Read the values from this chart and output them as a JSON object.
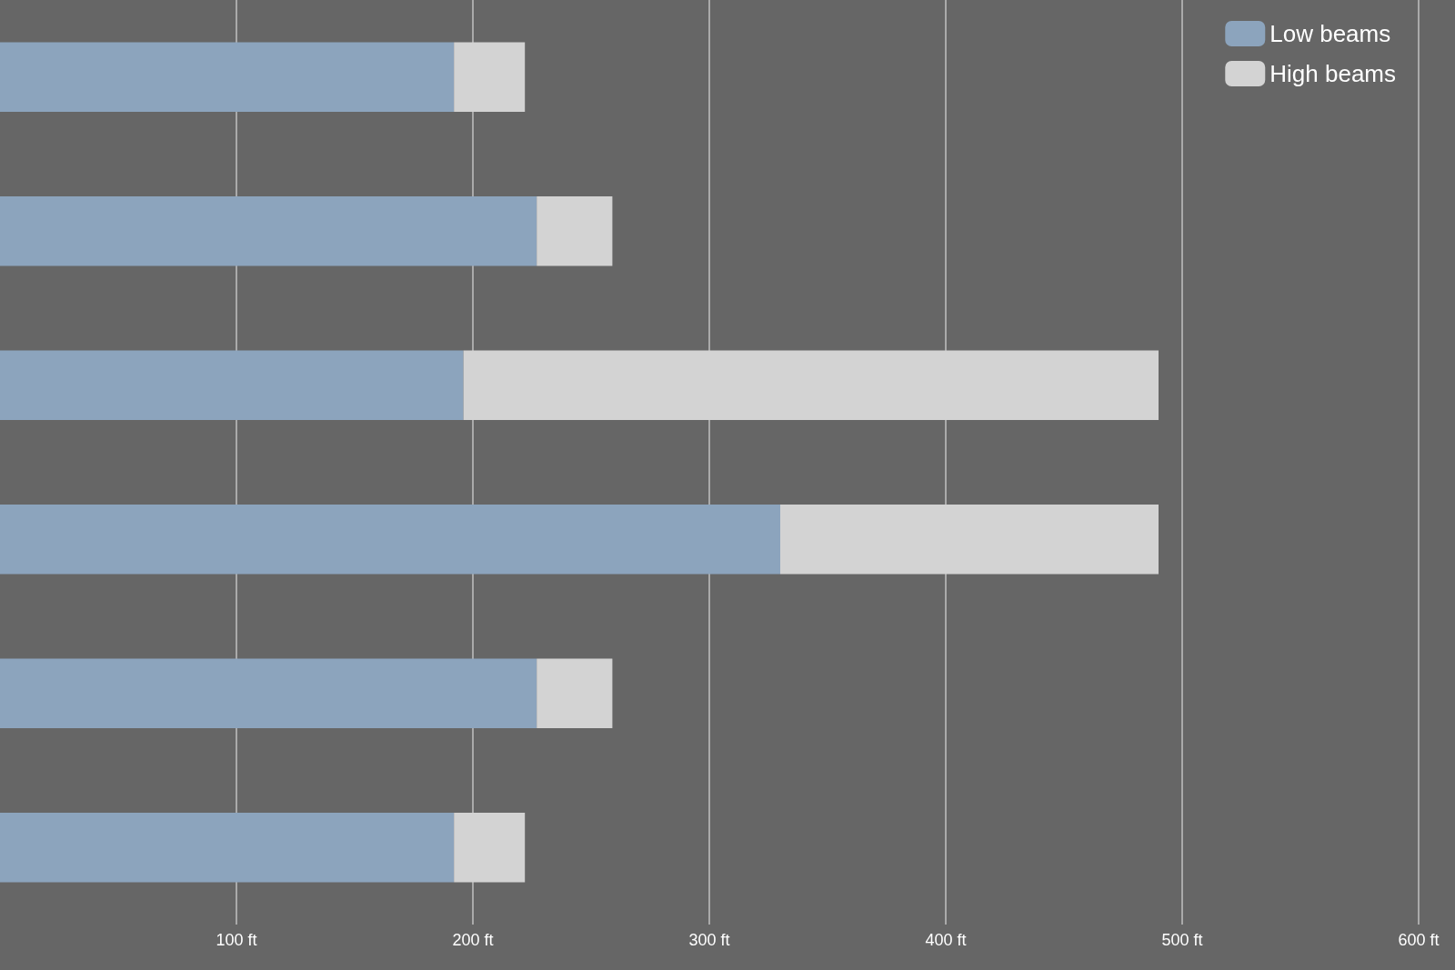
{
  "chart_data": {
    "type": "bar",
    "orientation": "horizontal",
    "stacked": true,
    "categories": [
      null,
      null,
      null,
      null,
      null,
      null
    ],
    "series": [
      {
        "name": "Low beams",
        "color": "#8ca4bd",
        "values": [
          192,
          227,
          196,
          330,
          227,
          192
        ]
      },
      {
        "name": "High beams",
        "color": "#d3d3d3",
        "values": [
          30,
          32,
          294,
          160,
          32,
          30
        ]
      }
    ],
    "xlim": [
      0,
      600
    ],
    "xticks": [
      {
        "value": 100,
        "label": "100 ft"
      },
      {
        "value": 200,
        "label": "200 ft"
      },
      {
        "value": 300,
        "label": "300 ft"
      },
      {
        "value": 400,
        "label": "400 ft"
      },
      {
        "value": 500,
        "label": "500 ft"
      },
      {
        "value": 600,
        "label": "600 ft"
      }
    ],
    "grid": "x",
    "legend": "top right",
    "tick_labels": "x"
  }
}
